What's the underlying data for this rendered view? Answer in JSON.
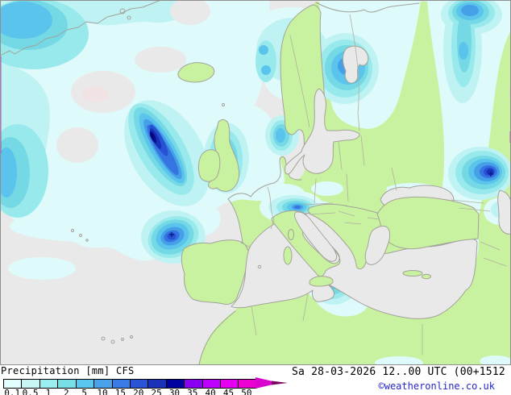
{
  "map": {
    "sea_color": "#E9E9E9",
    "land_color": "#C9F2A0",
    "coast_color": "#A2A29A",
    "precip_palette": [
      "#DFFAFA",
      "#BFF3F3",
      "#98E9EC",
      "#74D9E5",
      "#5AC4EC",
      "#46A0E8",
      "#3674E2",
      "#2852D4",
      "#1832B6",
      "#0A0C98"
    ],
    "features": [
      {
        "region": "North Atlantic south-west of Iceland",
        "peak_mm": 30
      },
      {
        "region": "Atlantic west of Iberia",
        "peak_mm": 25
      },
      {
        "region": "Southern Italy / Sicily",
        "peak_mm": 30
      },
      {
        "region": "Eastern Black Sea / Caucasus",
        "peak_mm": 25
      },
      {
        "region": "White Sea / north-west Russia",
        "peak_mm": 10
      },
      {
        "region": "Alps",
        "peak_mm": 15
      },
      {
        "region": "Northern England / Irish Sea",
        "peak_mm": 10
      },
      {
        "region": "Barents coast (north-east corner)",
        "peak_mm": 15
      }
    ]
  },
  "legend": {
    "title": "Precipitation [mm] CFS",
    "tick_labels": [
      "0.1",
      "0.5",
      "1",
      "2",
      "5",
      "10",
      "15",
      "20",
      "25",
      "30",
      "35",
      "40",
      "45",
      "50"
    ],
    "segment_colors": [
      "#E2FDFD",
      "#C6F7F5",
      "#9CEFF0",
      "#78DFE6",
      "#5AC8EE",
      "#4AA2EA",
      "#3A7AE4",
      "#2A54D6",
      "#1A32BA",
      "#0000A0",
      "#8A00F2",
      "#BC00FA",
      "#E600F2",
      "#EE00D2"
    ],
    "arrow_color": "#D804CE",
    "arrow_tip_color": "#7A0662"
  },
  "footer": {
    "valid_time": "Sa 28-03-2026 12..00 UTC (00+1512",
    "copyright": "©weatheronline.co.uk"
  }
}
